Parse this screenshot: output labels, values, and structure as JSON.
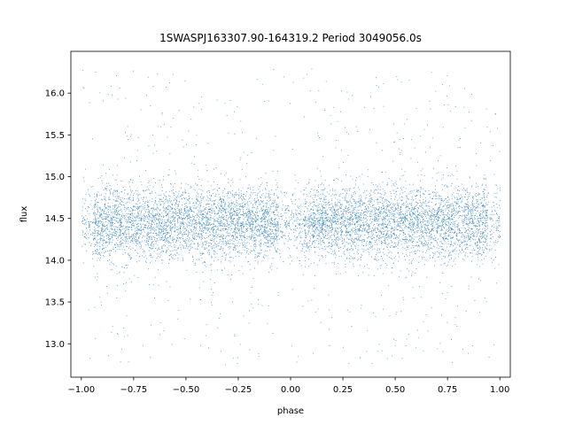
{
  "chart_data": {
    "type": "scatter",
    "title": "1SWASPJ163307.90-164319.2 Period 3049056.0s",
    "xlabel": "phase",
    "ylabel": "flux",
    "xlim": [
      -1.05,
      1.05
    ],
    "ylim": [
      12.6,
      16.5
    ],
    "xticks": [
      -1.0,
      -0.75,
      -0.5,
      -0.25,
      0.0,
      0.25,
      0.5,
      0.75,
      1.0
    ],
    "xtick_labels": [
      "−1.00",
      "−0.75",
      "−0.50",
      "−0.25",
      "0.00",
      "0.25",
      "0.50",
      "0.75",
      "1.00"
    ],
    "yticks": [
      13.0,
      13.5,
      14.0,
      14.5,
      15.0,
      15.5,
      16.0
    ],
    "ytick_labels": [
      "13.0",
      "13.5",
      "14.0",
      "14.5",
      "15.0",
      "15.5",
      "16.0"
    ],
    "grid": false,
    "marker_color": "#1f77b4",
    "series": [
      {
        "phase_range": [
          -1.0,
          1.0
        ],
        "flux_center": 14.45,
        "flux_core_range": [
          14.0,
          14.95
        ],
        "flux_full_range": [
          12.75,
          16.3
        ],
        "approx_point_count": 20000,
        "notes_visible": "dense horizontal band centered near 14.45 with sparse scatter to 12.75 and 16.3; visible gaps near phase 0.0"
      }
    ]
  }
}
